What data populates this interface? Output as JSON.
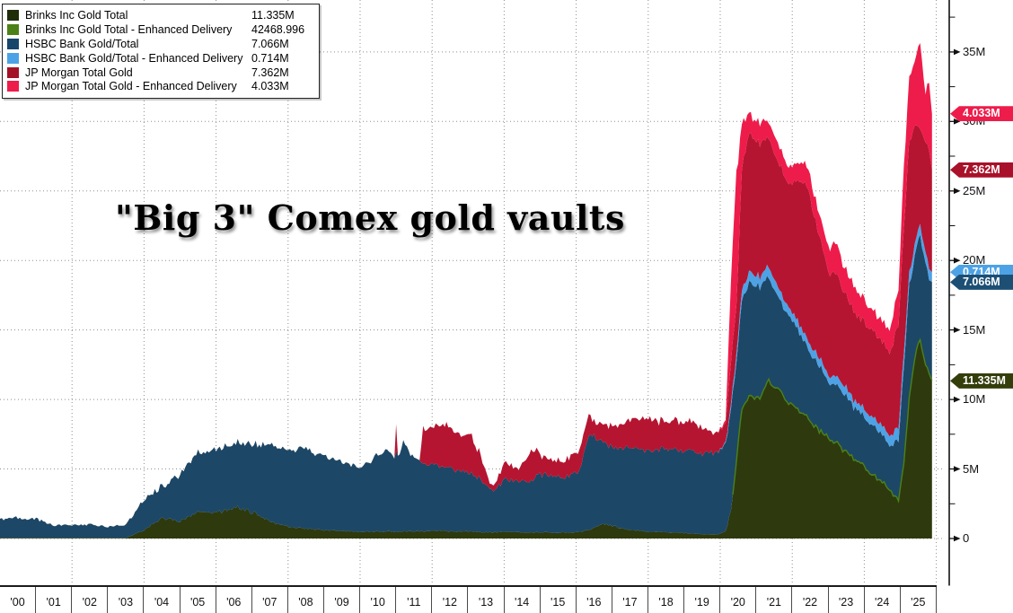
{
  "title": "\"Big 3\" Comex gold vaults",
  "legend": {
    "items": [
      {
        "label": "Brinks Inc Gold Total",
        "value": "11.335M",
        "color": "#1f2d08"
      },
      {
        "label": "Brinks Inc Gold Total - Enhanced Delivery",
        "value": "42468.996",
        "color": "#4c8118"
      },
      {
        "label": "HSBC Bank Gold/Total",
        "value": "7.066M",
        "color": "#17466b"
      },
      {
        "label": "HSBC Bank Gold/Total - Enhanced Delivery",
        "value": "0.714M",
        "color": "#4da2e6"
      },
      {
        "label": "JP Morgan Total Gold",
        "value": "7.362M",
        "color": "#a31126"
      },
      {
        "label": "JP Morgan Total Gold - Enhanced Delivery",
        "value": "4.033M",
        "color": "#ee1c4a"
      }
    ]
  },
  "y_axis": {
    "unit": "M",
    "minor_step": 2.5,
    "ticks": [
      {
        "label": "35M",
        "value": 35
      },
      {
        "label": "30M",
        "value": 30
      },
      {
        "label": "25M",
        "value": 25
      },
      {
        "label": "20M",
        "value": 20
      },
      {
        "label": "15M",
        "value": 15
      },
      {
        "label": "10M",
        "value": 10
      },
      {
        "label": "5M",
        "value": 5
      },
      {
        "label": "0",
        "value": 0
      }
    ]
  },
  "x_axis": {
    "labels": [
      "'00",
      "'01",
      "'02",
      "'03",
      "'04",
      "'05",
      "'06",
      "'07",
      "'08",
      "'09",
      "'10",
      "'11",
      "'12",
      "'13",
      "'14",
      "'15",
      "'16",
      "'17",
      "'18",
      "'19",
      "'20",
      "'21",
      "'22",
      "'23",
      "'24",
      "'25"
    ]
  },
  "badges": [
    {
      "text": "4.033M",
      "at": 30.552,
      "color": "#ee1c4a"
    },
    {
      "text": "7.362M",
      "at": 26.519,
      "color": "#a81129"
    },
    {
      "text": "0.714M",
      "at": 19.157,
      "color": "#4da2e6"
    },
    {
      "text": "7.066M",
      "at": 18.443,
      "color": "#1d4f74"
    },
    {
      "text": "11.335M",
      "at": 11.335,
      "color": "#343e0b"
    }
  ],
  "chart_data": {
    "type": "area",
    "stacked": true,
    "ylim": [
      0,
      38
    ],
    "grid": {
      "h_step": 5,
      "v_step_years": 2
    },
    "legend_position": "top-left",
    "x": [
      2000,
      2000.5,
      2001,
      2001.5,
      2002,
      2002.5,
      2003,
      2003.5,
      2004,
      2004.5,
      2005,
      2005.5,
      2006,
      2006.5,
      2007,
      2007.5,
      2008,
      2008.5,
      2009,
      2009.5,
      2010,
      2010.4,
      2010.7,
      2010.95,
      2011,
      2011.05,
      2011.2,
      2011.5,
      2011.68,
      2011.72,
      2012,
      2012.4,
      2012.8,
      2013.1,
      2013.4,
      2013.6,
      2013.8,
      2014,
      2014.4,
      2014.8,
      2015,
      2015.4,
      2015.8,
      2016.1,
      2016.35,
      2016.45,
      2016.7,
      2017,
      2017.5,
      2018,
      2018.5,
      2019,
      2019.5,
      2019.9,
      2020.15,
      2020.3,
      2020.45,
      2020.6,
      2020.75,
      2020.9,
      2021.1,
      2021.35,
      2021.6,
      2021.9,
      2022.2,
      2022.45,
      2022.7,
      2023,
      2023.2,
      2023.5,
      2023.8,
      2024.1,
      2024.4,
      2024.7,
      2024.95,
      2025.1,
      2025.25,
      2025.4,
      2025.55,
      2025.7,
      2025.8,
      2025.88
    ],
    "series": [
      {
        "id": "brinks",
        "name": "Brinks Inc Gold Total",
        "color": "#2e3a0d",
        "values": [
          0.05,
          0.05,
          0.05,
          0.05,
          0.05,
          0.05,
          0.05,
          0.05,
          0.6,
          1.5,
          1.2,
          2,
          1.8,
          2.3,
          1.9,
          1.2,
          0.9,
          0.7,
          0.6,
          0.55,
          0.5,
          0.5,
          0.5,
          0.5,
          0.5,
          0.5,
          0.5,
          0.5,
          0.5,
          0.5,
          0.55,
          0.55,
          0.5,
          0.5,
          0.45,
          0.45,
          0.45,
          0.5,
          0.45,
          0.45,
          0.45,
          0.4,
          0.45,
          0.5,
          0.6,
          0.7,
          1.1,
          0.9,
          0.6,
          0.5,
          0.45,
          0.4,
          0.3,
          0.3,
          0.5,
          2,
          5.5,
          9.3,
          10,
          10.2,
          10,
          11.3,
          10.7,
          9.8,
          9.2,
          8.6,
          7.8,
          7.2,
          6.9,
          6.1,
          5.6,
          4.8,
          4.2,
          3.6,
          2.6,
          5.5,
          10,
          13,
          14.4,
          12.5,
          11.8,
          11.335
        ]
      },
      {
        "id": "brinks-enhanced",
        "name": "Brinks Inc Gold Total - Enhanced Delivery",
        "color": "#4c8118",
        "values": [
          0,
          0,
          0,
          0,
          0,
          0,
          0,
          0,
          0,
          0,
          0,
          0,
          0,
          0,
          0,
          0,
          0,
          0,
          0,
          0,
          0,
          0,
          0,
          0,
          0,
          0,
          0,
          0,
          0,
          0,
          0,
          0,
          0,
          0,
          0,
          0,
          0,
          0,
          0,
          0,
          0,
          0,
          0,
          0,
          0,
          0,
          0,
          0,
          0,
          0,
          0,
          0,
          0,
          0,
          0,
          0,
          0.04,
          0.04,
          0.04,
          0.04,
          0.04,
          0.04,
          0.04,
          0.04,
          0.04,
          0.04,
          0.04,
          0.04,
          0.04,
          0.04,
          0.04,
          0.04,
          0.04,
          0.04,
          0.04,
          0.04,
          0.04,
          0.04,
          0.04,
          0.04,
          0.04,
          0.04
        ]
      },
      {
        "id": "hsbc",
        "name": "HSBC Bank Gold/Total",
        "color": "#1d4766",
        "values": [
          1.35,
          1.45,
          1.35,
          0.9,
          0.9,
          0.95,
          0.8,
          0.95,
          2.2,
          2.3,
          3.3,
          4.3,
          4.5,
          4.7,
          4.8,
          5.6,
          5.5,
          5.7,
          5.3,
          5,
          4.5,
          5.3,
          6,
          5.4,
          5.8,
          5.4,
          6.4,
          5.2,
          4.9,
          4.9,
          4.75,
          4.6,
          4.3,
          4.3,
          3.6,
          3.05,
          3.15,
          3.7,
          3.65,
          3.85,
          4.15,
          4,
          4.05,
          4.5,
          6.9,
          6.7,
          5.9,
          5.6,
          5.9,
          5.8,
          6,
          5.9,
          5.8,
          5.9,
          6.2,
          7.5,
          7,
          7.8,
          8,
          8.2,
          8,
          7.4,
          6.6,
          6.2,
          5.6,
          5,
          4.6,
          4.1,
          4.3,
          4,
          3.6,
          3.6,
          3.4,
          3.3,
          4.2,
          7,
          8,
          7.3,
          7.5,
          7.2,
          6.8,
          7.066
        ]
      },
      {
        "id": "hsbc-enhanced",
        "name": "HSBC Bank Gold/Total - Enhanced Delivery",
        "color": "#4da2e6",
        "values": [
          0,
          0,
          0,
          0,
          0,
          0,
          0,
          0,
          0,
          0,
          0,
          0,
          0,
          0,
          0,
          0,
          0,
          0,
          0,
          0,
          0,
          0,
          0,
          0,
          0,
          0,
          0,
          0,
          0,
          0,
          0,
          0,
          0,
          0,
          0,
          0,
          0,
          0,
          0,
          0,
          0,
          0,
          0,
          0,
          0,
          0,
          0,
          0,
          0,
          0,
          0,
          0,
          0,
          0,
          0.1,
          0.4,
          0.6,
          0.7,
          0.75,
          0.8,
          0.7,
          0.8,
          0.7,
          0.6,
          0.6,
          0.6,
          0.6,
          0.5,
          0.6,
          0.6,
          0.5,
          0.6,
          0.6,
          0.7,
          0.9,
          1,
          0.9,
          0.8,
          0.8,
          0.8,
          0.75,
          0.714
        ]
      },
      {
        "id": "jpm",
        "name": "JP Morgan Total Gold",
        "color": "#b51531",
        "values": [
          0,
          0,
          0,
          0,
          0,
          0,
          0,
          0,
          0,
          0,
          0,
          0,
          0,
          0,
          0,
          0,
          0,
          0,
          0,
          0,
          0,
          0,
          0,
          0,
          2,
          0,
          0,
          0,
          0,
          2.5,
          2.6,
          3.1,
          2.6,
          2.7,
          1.4,
          0.35,
          0.5,
          1.2,
          0.9,
          2.3,
          1.3,
          1.1,
          1.3,
          1.5,
          1.6,
          1.1,
          1.2,
          1.5,
          2,
          2.3,
          1.9,
          2.2,
          1.8,
          1.3,
          1.4,
          3,
          3.5,
          8.5,
          10,
          9.8,
          9.5,
          9.3,
          8.9,
          9,
          10.3,
          11,
          9,
          7.5,
          7.5,
          6.5,
          6.3,
          6.3,
          6.2,
          6,
          7.5,
          9,
          9.5,
          8.5,
          7,
          8,
          8.5,
          7.362
        ]
      },
      {
        "id": "jpm-enhanced",
        "name": "JP Morgan Total Gold - Enhanced Delivery",
        "color": "#ee1c4a",
        "values": [
          0,
          0,
          0,
          0,
          0,
          0,
          0,
          0,
          0,
          0,
          0,
          0,
          0,
          0,
          0,
          0,
          0,
          0,
          0,
          0,
          0,
          0,
          0,
          0,
          0,
          0,
          0,
          0,
          0,
          0,
          0,
          0,
          0,
          0,
          0,
          0,
          0,
          0,
          0,
          0,
          0,
          0,
          0,
          0,
          0,
          0,
          0,
          0,
          0,
          0,
          0,
          0,
          0,
          0,
          0.2,
          6,
          9.5,
          3.5,
          1.8,
          1.3,
          1.5,
          1.2,
          1.3,
          1.2,
          1.3,
          1.5,
          1.5,
          1.8,
          2.2,
          1.8,
          1.7,
          1.5,
          1.4,
          1.6,
          2.5,
          4.5,
          4.5,
          4.8,
          6,
          3.5,
          4.8,
          4.033
        ]
      }
    ]
  }
}
